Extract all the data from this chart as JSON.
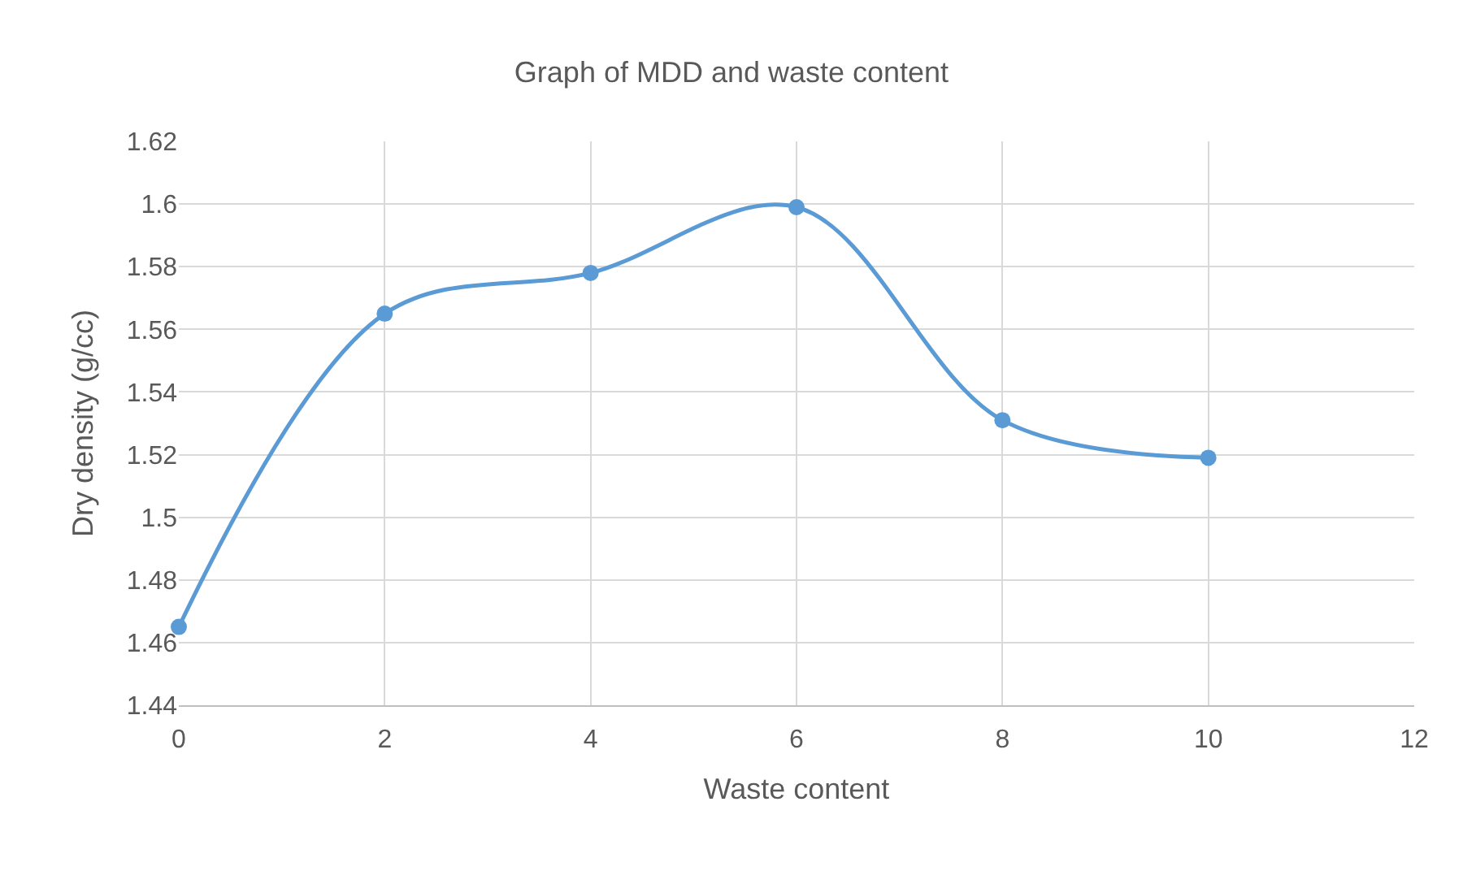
{
  "chart_data": {
    "type": "line",
    "title": "Graph of MDD and waste content",
    "xlabel": "Waste content",
    "ylabel": "Dry density (g/cc)",
    "x": [
      0,
      2,
      4,
      6,
      8,
      10
    ],
    "series": [
      {
        "color": "#5b9bd5",
        "values": [
          1.465,
          1.565,
          1.578,
          1.599,
          1.531,
          1.519
        ]
      }
    ],
    "xlim": [
      0,
      12
    ],
    "xticks": [
      0,
      2,
      4,
      6,
      8,
      10,
      12
    ],
    "ylim": [
      1.44,
      1.62
    ],
    "yticks": [
      {
        "value": 1.44,
        "label": "1.44"
      },
      {
        "value": 1.46,
        "label": "1.46"
      },
      {
        "value": 1.48,
        "label": "1.48"
      },
      {
        "value": 1.5,
        "label": "1.5"
      },
      {
        "value": 1.52,
        "label": "1.52"
      },
      {
        "value": 1.54,
        "label": "1.54"
      },
      {
        "value": 1.56,
        "label": "1.56"
      },
      {
        "value": 1.58,
        "label": "1.58"
      },
      {
        "value": 1.6,
        "label": "1.6"
      },
      {
        "value": 1.62,
        "label": "1.62"
      }
    ],
    "grid": true,
    "marker": "circle",
    "line_style": "solid"
  }
}
